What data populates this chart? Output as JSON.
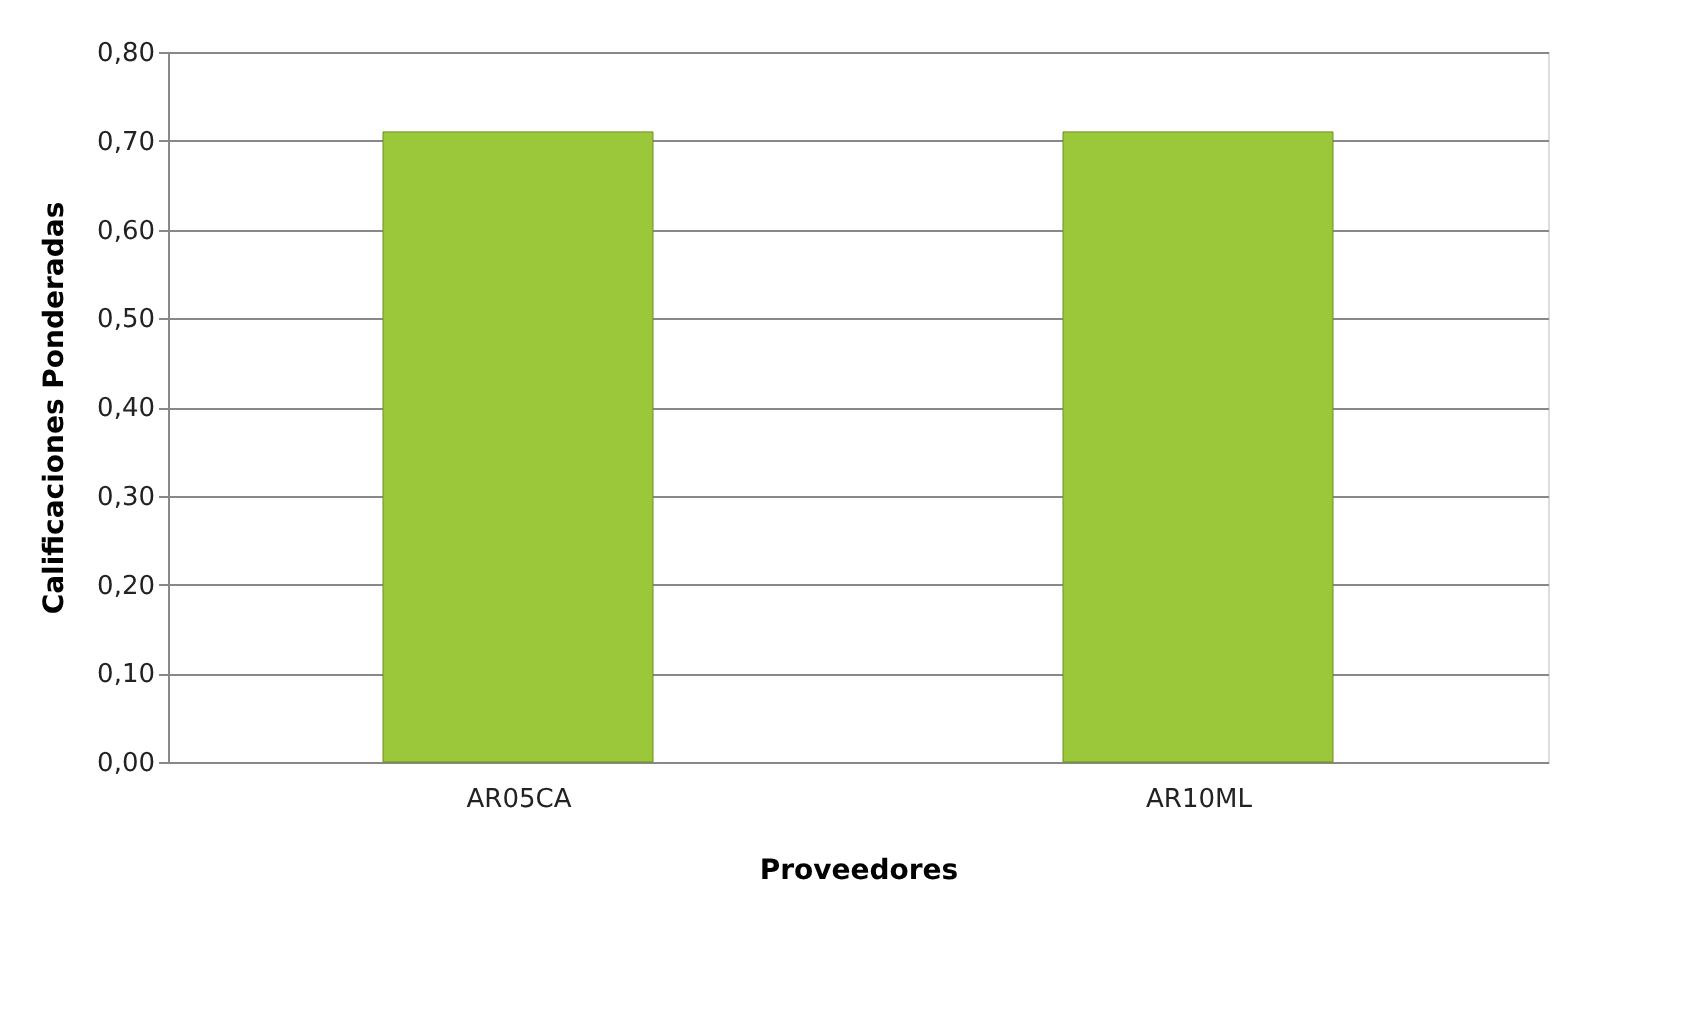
{
  "chart_data": {
    "type": "bar",
    "xlabel": "Proveedores",
    "ylabel": "Calificaciones  Ponderadas",
    "categories": [
      "AR05CA",
      "AR10ML"
    ],
    "values": [
      0.71,
      0.71
    ],
    "color": "#9bc83a",
    "ylim": [
      0,
      0.8
    ],
    "yticks": [
      {
        "value": 0,
        "label": "0,00"
      },
      {
        "value": 0.1,
        "label": "0,10"
      },
      {
        "value": 0.2,
        "label": "0,20"
      },
      {
        "value": 0.3,
        "label": "0,30"
      },
      {
        "value": 0.4,
        "label": "0,40"
      },
      {
        "value": 0.5,
        "label": "0,50"
      },
      {
        "value": 0.6,
        "label": "0,60"
      },
      {
        "value": 0.7,
        "label": "0,70"
      },
      {
        "value": 0.8,
        "label": "0,80"
      }
    ],
    "grid": "y"
  }
}
